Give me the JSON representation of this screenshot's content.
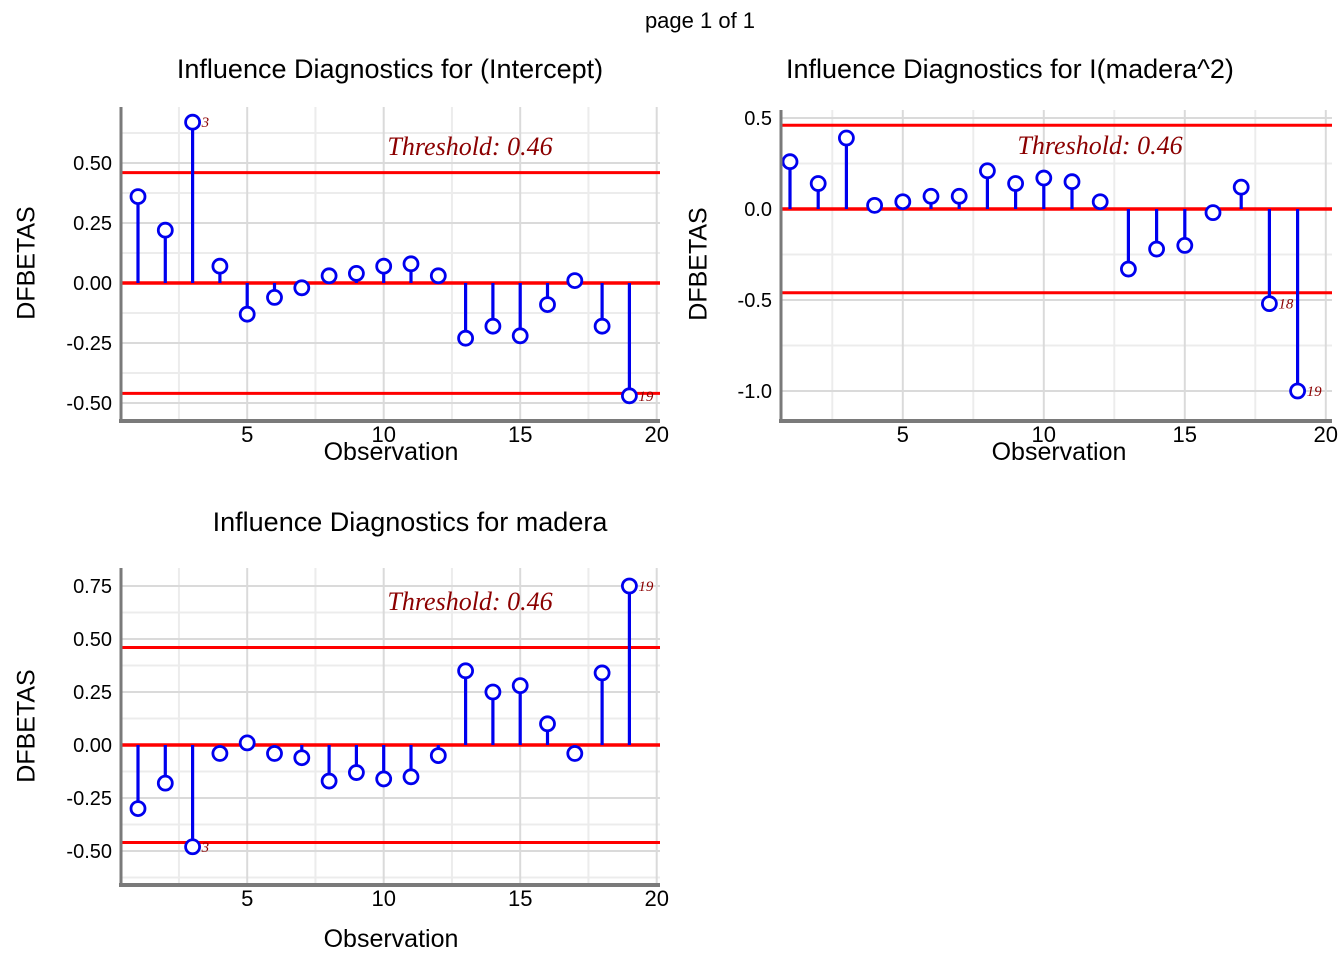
{
  "page": {
    "header": "page 1 of 1"
  },
  "colors": {
    "stem_blue": "#0000EE",
    "threshold_red": "#FF0000",
    "annotation_dark_red": "#8B0000",
    "grid_major": "#DADADA",
    "grid_minor": "#ECECEC",
    "axis_gray": "#7A7A7A"
  },
  "chart_data": [
    {
      "id": "intercept",
      "type": "stem",
      "title": "Influence Diagnostics for (Intercept)",
      "xlabel": "Observation",
      "ylabel": "DFBETAS",
      "annotation": "Threshold: 0.46",
      "threshold": 0.46,
      "x": [
        1,
        2,
        3,
        4,
        5,
        6,
        7,
        8,
        9,
        10,
        11,
        12,
        13,
        14,
        15,
        16,
        17,
        18,
        19
      ],
      "values": [
        0.36,
        0.22,
        0.67,
        0.07,
        -0.13,
        -0.06,
        -0.02,
        0.03,
        0.04,
        0.07,
        0.08,
        0.03,
        -0.23,
        -0.18,
        -0.22,
        -0.09,
        0.01,
        -0.18,
        -0.47
      ],
      "point_labels": [
        {
          "x": 3,
          "label": "3"
        },
        {
          "x": 19,
          "label": "19"
        }
      ],
      "yticks": [
        0.5,
        0.25,
        0.0,
        -0.25,
        -0.5
      ],
      "ytick_labels": [
        "0.50",
        "0.25",
        "0.00",
        "-0.25",
        "-0.50"
      ],
      "ygrid_minor": [
        0.625,
        0.375,
        0.125,
        -0.125,
        -0.375
      ],
      "xticks": [
        5,
        10,
        15,
        20
      ],
      "xtick_labels": [
        "5",
        "10",
        "15",
        "20"
      ],
      "xgrid_minor": [
        2.5,
        7.5,
        12.5,
        17.5
      ],
      "ylim": [
        -0.57,
        0.73
      ],
      "xlim": [
        0.4,
        20.1
      ],
      "grid": true,
      "legend": "none"
    },
    {
      "id": "madera2",
      "type": "stem",
      "title": "Influence Diagnostics for I(madera^2)",
      "xlabel": "Observation",
      "ylabel": "DFBETAS",
      "annotation": "Threshold: 0.46",
      "threshold": 0.46,
      "x": [
        1,
        2,
        3,
        4,
        5,
        6,
        7,
        8,
        9,
        10,
        11,
        12,
        13,
        14,
        15,
        16,
        17,
        18,
        19
      ],
      "values": [
        0.26,
        0.14,
        0.39,
        0.02,
        0.04,
        0.07,
        0.07,
        0.21,
        0.14,
        0.17,
        0.15,
        0.04,
        -0.33,
        -0.22,
        -0.2,
        -0.02,
        0.12,
        -0.52,
        -1.0
      ],
      "point_labels": [
        {
          "x": 18,
          "label": "18"
        },
        {
          "x": 19,
          "label": "19"
        }
      ],
      "yticks": [
        0.5,
        0.0,
        -0.5,
        -1.0
      ],
      "ytick_labels": [
        "0.5",
        "0.0",
        "-0.5",
        "-1.0"
      ],
      "ygrid_minor": [
        0.25,
        -0.25,
        -0.75
      ],
      "xticks": [
        5,
        10,
        15,
        20
      ],
      "xtick_labels": [
        "5",
        "10",
        "15",
        "20"
      ],
      "xgrid_minor": [
        2.5,
        7.5,
        12.5,
        17.5
      ],
      "ylim": [
        -1.15,
        0.54
      ],
      "xlim": [
        0.7,
        20.2
      ],
      "grid": true,
      "legend": "none"
    },
    {
      "id": "madera",
      "type": "stem",
      "title": "Influence Diagnostics for madera",
      "xlabel": "Observation",
      "ylabel": "DFBETAS",
      "annotation": "Threshold: 0.46",
      "threshold": 0.46,
      "x": [
        1,
        2,
        3,
        4,
        5,
        6,
        7,
        8,
        9,
        10,
        11,
        12,
        13,
        14,
        15,
        16,
        17,
        18,
        19
      ],
      "values": [
        -0.3,
        -0.18,
        -0.48,
        -0.04,
        0.01,
        -0.04,
        -0.06,
        -0.17,
        -0.13,
        -0.16,
        -0.15,
        -0.05,
        0.35,
        0.25,
        0.28,
        0.1,
        -0.04,
        0.34,
        0.75
      ],
      "point_labels": [
        {
          "x": 3,
          "label": "3"
        },
        {
          "x": 19,
          "label": "19"
        }
      ],
      "yticks": [
        0.75,
        0.5,
        0.25,
        0.0,
        -0.25,
        -0.5
      ],
      "ytick_labels": [
        "0.75",
        "0.50",
        "0.25",
        "0.00",
        "-0.25",
        "-0.50"
      ],
      "ygrid_minor": [
        0.625,
        0.375,
        0.125,
        -0.125,
        -0.375,
        -0.625
      ],
      "xticks": [
        5,
        10,
        15,
        20
      ],
      "xtick_labels": [
        "5",
        "10",
        "15",
        "20"
      ],
      "xgrid_minor": [
        2.5,
        7.5,
        12.5,
        17.5
      ],
      "ylim": [
        -0.65,
        0.84
      ],
      "xlim": [
        0.4,
        20.1
      ],
      "grid": true,
      "legend": "none"
    }
  ]
}
